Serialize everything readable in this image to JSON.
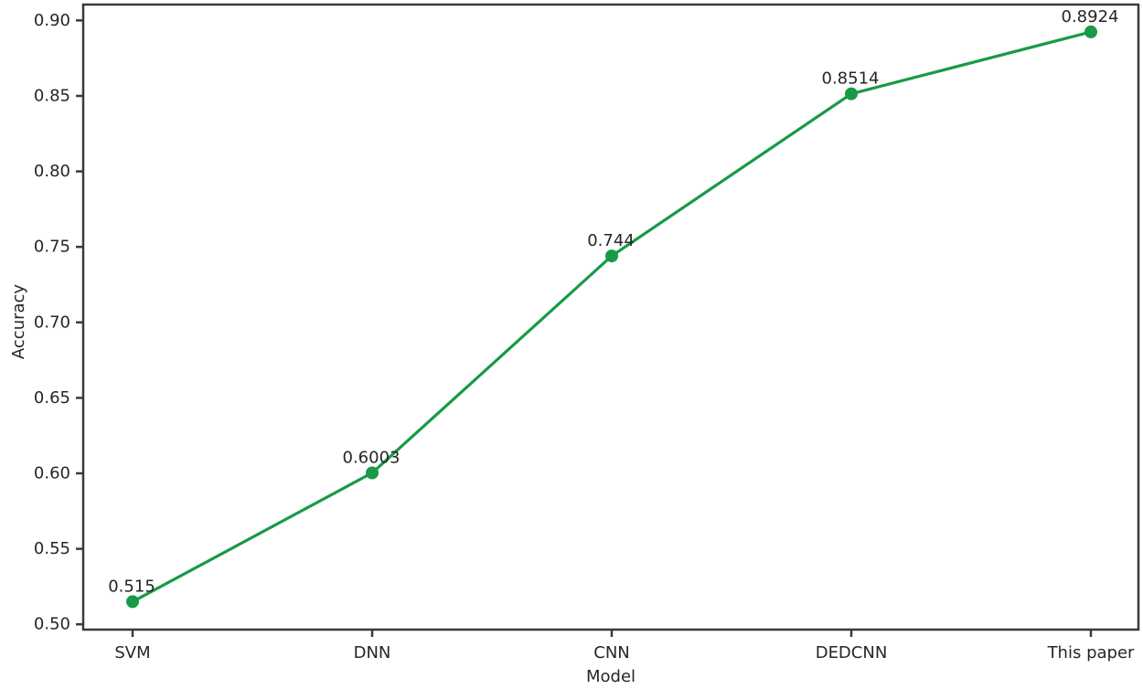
{
  "chart_data": {
    "type": "line",
    "title": "",
    "xlabel": "Model",
    "ylabel": "Accuracy",
    "categories": [
      "SVM",
      "DNN",
      "CNN",
      "DEDCNN",
      "This paper"
    ],
    "series": [
      {
        "name": "Accuracy",
        "values": [
          0.515,
          0.6003,
          0.744,
          0.8514,
          0.8924
        ],
        "point_labels": [
          "0.515",
          "0.6003",
          "0.744",
          "0.8514",
          "0.8924"
        ],
        "color": "#189a46",
        "marker": "circle"
      }
    ],
    "yticks": [
      0.5,
      0.55,
      0.6,
      0.65,
      0.7,
      0.75,
      0.8,
      0.85,
      0.9
    ],
    "ytick_labels": [
      "0.50",
      "0.55",
      "0.60",
      "0.65",
      "0.70",
      "0.75",
      "0.80",
      "0.85",
      "0.90"
    ],
    "ylim": [
      0.4965,
      0.9105
    ],
    "grid": false,
    "legend": "none",
    "axis_color": "#3a3a3a",
    "text_color": "#262626",
    "background_color": "#ffffff"
  }
}
